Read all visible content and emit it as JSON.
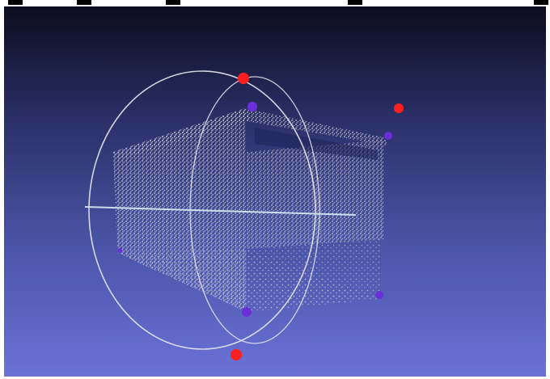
{
  "scene": {
    "background_top": "#0c0c1e",
    "background_bottom": "#6a72d6",
    "point_color": "#c8c8d0",
    "axis_line_color": "#cfe6ef",
    "trackball_color": "#e8e8f0",
    "control_marker_red": "#ff1f1f",
    "control_marker_purple": "#6a2fd8"
  },
  "icons": {
    "trackball": "trackball-icon",
    "point_cloud": "point-cloud-icon"
  }
}
